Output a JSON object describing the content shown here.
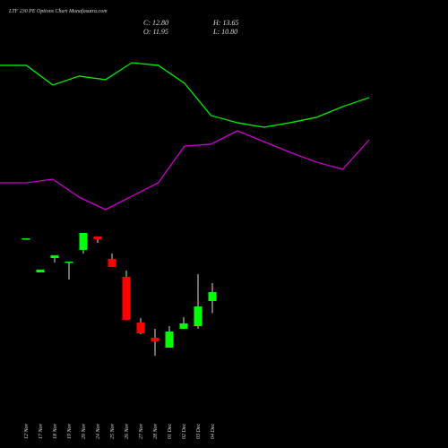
{
  "chart_data": [
    {
      "type": "candlestick",
      "title": "LTF 230 PE Options Chart Munafasutra.com",
      "info": [
        "C: 12.80",
        "H: 13.65",
        "O: 11.95",
        "L: 10.80"
      ],
      "categories": [
        "12 Nov",
        "17 Nov",
        "18 Nov",
        "19 Nov",
        "20 Nov",
        "24 Nov",
        "25 Nov",
        "26 Nov",
        "27 Nov",
        "28 Nov",
        "01 Dec",
        "02 Dec",
        "03 Dec",
        "04 Dec"
      ],
      "open": [
        17.9,
        14.67,
        16.03,
        15.69,
        16.8,
        18.07,
        15.95,
        14.25,
        9.91,
        8.47,
        7.53,
        9.32,
        9.57,
        11.95
      ],
      "high": [
        17.9,
        14.93,
        16.29,
        15.69,
        18.41,
        18.07,
        16.46,
        14.84,
        10.34,
        9.32,
        9.57,
        10.42,
        14.5,
        13.65
      ],
      "low": [
        17.9,
        14.67,
        15.61,
        13.99,
        16.46,
        17.48,
        15.18,
        10.17,
        8.81,
        6.77,
        7.53,
        9.32,
        9.32,
        10.8
      ],
      "close": [
        17.9,
        14.93,
        16.29,
        15.69,
        18.41,
        17.82,
        15.18,
        10.17,
        8.89,
        8.13,
        9.06,
        9.83,
        11.44,
        12.8
      ],
      "up_color": "#00ff00",
      "down_color": "#ff0000",
      "wick_color": "#dddddd",
      "ylim": [
        -1.99,
        40.51
      ]
    },
    {
      "type": "line",
      "series": [
        {
          "color": "#00ee00",
          "values": [
            34.31,
            34.31,
            32.44,
            33.29,
            32.95,
            34.56,
            34.31,
            32.61,
            29.55,
            28.87,
            28.44,
            28.87,
            29.38,
            30.4,
            31.25
          ]
        },
        {
          "color": "#cc00cc",
          "values": [
            23.17,
            23.17,
            23.51,
            21.81,
            20.62,
            21.9,
            23.17,
            26.66,
            26.83,
            28.1,
            27.08,
            26.06,
            25.13,
            24.45,
            27.25
          ]
        }
      ],
      "ylim": [
        -1.99,
        40.51
      ]
    }
  ]
}
